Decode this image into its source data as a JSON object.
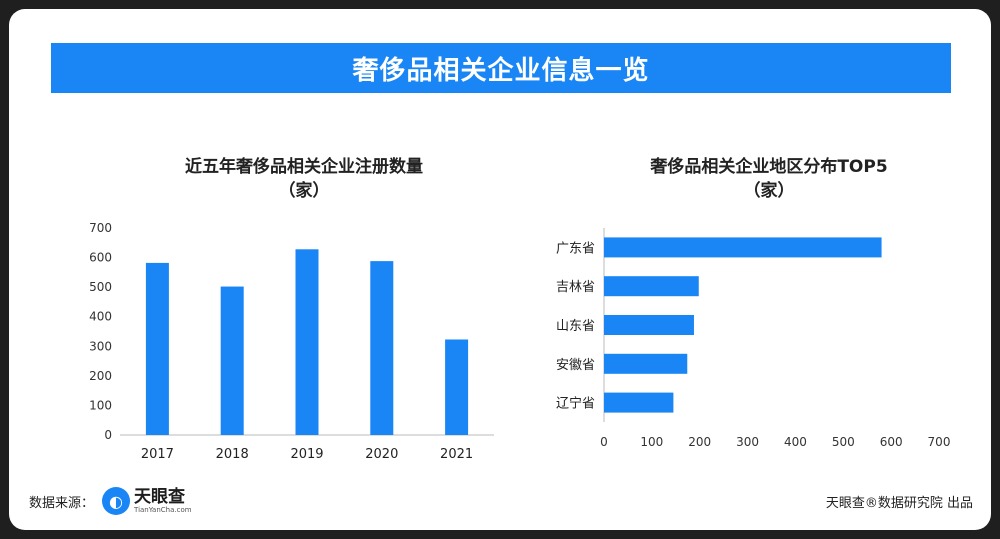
{
  "banner": {
    "title": "奢侈品相关企业信息一览"
  },
  "chart_data": [
    {
      "type": "bar",
      "title": "近五年奢侈品相关企业注册数量",
      "subtitle": "（家）",
      "categories": [
        "2017",
        "2018",
        "2019",
        "2020",
        "2021"
      ],
      "values": [
        582,
        502,
        628,
        588,
        323
      ],
      "ylim": [
        0,
        700
      ],
      "yticks": [
        0,
        100,
        200,
        300,
        400,
        500,
        600,
        700
      ],
      "color": "#1a86f5",
      "grid": false
    },
    {
      "type": "bar",
      "orientation": "horizontal",
      "title": "奢侈品相关企业地区分布TOP5",
      "subtitle": "（家）",
      "categories": [
        "广东省",
        "吉林省",
        "山东省",
        "安徽省",
        "辽宁省"
      ],
      "values": [
        580,
        198,
        188,
        174,
        145
      ],
      "xlim": [
        0,
        700
      ],
      "xticks": [
        0,
        100,
        200,
        300,
        400,
        500,
        600,
        700
      ],
      "color": "#1a86f5",
      "grid": false
    }
  ],
  "footer": {
    "source_label": "数据来源：",
    "logo_name": "天眼查",
    "logo_sub": "TianYanCha.com",
    "credit": "天眼查®数据研究院 出品"
  }
}
